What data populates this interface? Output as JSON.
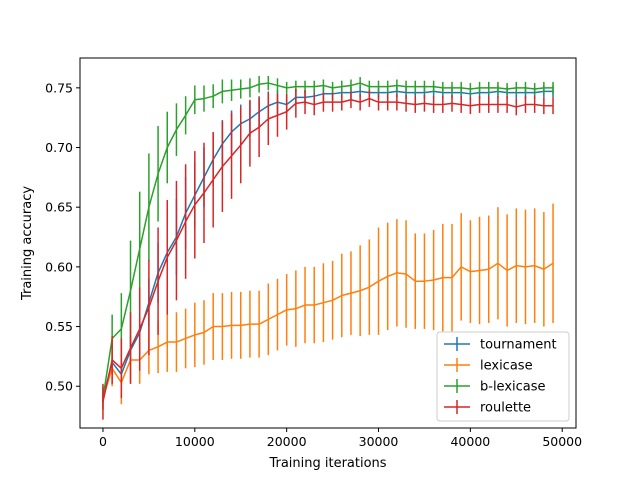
{
  "chart_data": {
    "type": "line",
    "title": "",
    "xlabel": "Training iterations",
    "ylabel": "Training accuracy",
    "xlim": [
      -2500,
      51500
    ],
    "ylim": [
      0.465,
      0.775
    ],
    "xticks": [
      0,
      10000,
      20000,
      30000,
      40000,
      50000
    ],
    "xtick_labels": [
      "0",
      "10000",
      "20000",
      "30000",
      "40000",
      "50000"
    ],
    "yticks": [
      0.5,
      0.55,
      0.6,
      0.65,
      0.7,
      0.75
    ],
    "ytick_labels": [
      "0.50",
      "0.55",
      "0.60",
      "0.65",
      "0.70",
      "0.75"
    ],
    "grid": false,
    "legend_position": "bottom-right",
    "x": [
      0,
      1000,
      2000,
      3000,
      4000,
      5000,
      6000,
      7000,
      8000,
      9000,
      10000,
      11000,
      12000,
      13000,
      14000,
      15000,
      16000,
      17000,
      18000,
      19000,
      20000,
      21000,
      22000,
      23000,
      24000,
      25000,
      26000,
      27000,
      28000,
      29000,
      30000,
      31000,
      32000,
      33000,
      34000,
      35000,
      36000,
      37000,
      38000,
      39000,
      40000,
      41000,
      42000,
      43000,
      44000,
      45000,
      46000,
      47000,
      48000,
      49000
    ],
    "series": [
      {
        "name": "tournament",
        "color": "#1f77b4",
        "values": [
          0.49,
          0.52,
          0.51,
          0.53,
          0.545,
          0.57,
          0.595,
          0.612,
          0.625,
          0.645,
          0.66,
          0.675,
          0.69,
          0.703,
          0.713,
          0.72,
          0.724,
          0.73,
          0.735,
          0.738,
          0.736,
          0.742,
          0.742,
          0.743,
          0.745,
          0.745,
          0.746,
          0.746,
          0.747,
          0.746,
          0.746,
          0.746,
          0.747,
          0.746,
          0.746,
          0.746,
          0.747,
          0.746,
          0.746,
          0.746,
          0.745,
          0.746,
          0.746,
          0.747,
          0.746,
          0.746,
          0.746,
          0.746,
          0.747,
          0.747
        ],
        "errors": [
          0.004,
          0.005,
          0.006,
          0.008,
          0.012,
          0.02,
          0.025,
          0.03,
          0.032,
          0.03,
          0.028,
          0.025,
          0.022,
          0.02,
          0.018,
          0.016,
          0.015,
          0.013,
          0.012,
          0.01,
          0.008,
          0.007,
          0.006,
          0.006,
          0.006,
          0.005,
          0.005,
          0.005,
          0.005,
          0.005,
          0.005,
          0.005,
          0.005,
          0.005,
          0.005,
          0.005,
          0.005,
          0.005,
          0.005,
          0.005,
          0.005,
          0.005,
          0.005,
          0.005,
          0.005,
          0.005,
          0.005,
          0.005,
          0.005,
          0.005
        ]
      },
      {
        "name": "lexicase",
        "color": "#ff7f0e",
        "values": [
          0.49,
          0.515,
          0.503,
          0.522,
          0.522,
          0.53,
          0.533,
          0.537,
          0.537,
          0.54,
          0.543,
          0.545,
          0.55,
          0.55,
          0.551,
          0.551,
          0.552,
          0.552,
          0.556,
          0.56,
          0.564,
          0.565,
          0.568,
          0.568,
          0.57,
          0.572,
          0.576,
          0.578,
          0.58,
          0.583,
          0.588,
          0.592,
          0.595,
          0.594,
          0.588,
          0.588,
          0.589,
          0.591,
          0.591,
          0.6,
          0.596,
          0.597,
          0.598,
          0.603,
          0.597,
          0.601,
          0.6,
          0.601,
          0.598,
          0.603
        ],
        "errors": [
          0.008,
          0.015,
          0.018,
          0.02,
          0.02,
          0.02,
          0.022,
          0.025,
          0.025,
          0.025,
          0.027,
          0.027,
          0.028,
          0.028,
          0.028,
          0.028,
          0.028,
          0.028,
          0.03,
          0.03,
          0.03,
          0.032,
          0.032,
          0.032,
          0.033,
          0.033,
          0.035,
          0.035,
          0.038,
          0.04,
          0.045,
          0.045,
          0.045,
          0.045,
          0.04,
          0.04,
          0.042,
          0.045,
          0.045,
          0.045,
          0.043,
          0.045,
          0.045,
          0.047,
          0.047,
          0.048,
          0.048,
          0.048,
          0.048,
          0.05
        ]
      },
      {
        "name": "b-lexicase",
        "color": "#2ca02c",
        "values": [
          0.49,
          0.54,
          0.548,
          0.58,
          0.615,
          0.65,
          0.678,
          0.7,
          0.715,
          0.727,
          0.74,
          0.741,
          0.743,
          0.747,
          0.748,
          0.749,
          0.75,
          0.753,
          0.754,
          0.752,
          0.75,
          0.751,
          0.751,
          0.751,
          0.752,
          0.75,
          0.751,
          0.752,
          0.754,
          0.751,
          0.751,
          0.751,
          0.752,
          0.751,
          0.751,
          0.751,
          0.751,
          0.75,
          0.75,
          0.75,
          0.749,
          0.75,
          0.75,
          0.75,
          0.749,
          0.75,
          0.75,
          0.749,
          0.75,
          0.75
        ],
        "errors": [
          0.01,
          0.02,
          0.03,
          0.042,
          0.048,
          0.045,
          0.04,
          0.03,
          0.022,
          0.016,
          0.012,
          0.011,
          0.01,
          0.01,
          0.009,
          0.008,
          0.008,
          0.007,
          0.006,
          0.006,
          0.005,
          0.005,
          0.005,
          0.005,
          0.005,
          0.005,
          0.005,
          0.005,
          0.005,
          0.005,
          0.005,
          0.005,
          0.005,
          0.005,
          0.005,
          0.005,
          0.005,
          0.005,
          0.005,
          0.005,
          0.005,
          0.005,
          0.005,
          0.005,
          0.005,
          0.005,
          0.005,
          0.005,
          0.005,
          0.005
        ]
      },
      {
        "name": "roulette",
        "color": "#d62728",
        "values": [
          0.487,
          0.522,
          0.515,
          0.532,
          0.548,
          0.566,
          0.588,
          0.608,
          0.622,
          0.638,
          0.652,
          0.662,
          0.673,
          0.684,
          0.693,
          0.702,
          0.712,
          0.717,
          0.724,
          0.727,
          0.73,
          0.737,
          0.738,
          0.736,
          0.738,
          0.738,
          0.738,
          0.74,
          0.738,
          0.741,
          0.738,
          0.738,
          0.738,
          0.737,
          0.736,
          0.737,
          0.736,
          0.736,
          0.737,
          0.736,
          0.735,
          0.736,
          0.736,
          0.736,
          0.736,
          0.734,
          0.736,
          0.736,
          0.735,
          0.735
        ],
        "errors": [
          0.015,
          0.02,
          0.025,
          0.03,
          0.035,
          0.04,
          0.045,
          0.048,
          0.05,
          0.048,
          0.045,
          0.042,
          0.04,
          0.038,
          0.036,
          0.032,
          0.028,
          0.025,
          0.022,
          0.018,
          0.015,
          0.012,
          0.01,
          0.009,
          0.008,
          0.008,
          0.007,
          0.007,
          0.007,
          0.007,
          0.007,
          0.007,
          0.007,
          0.007,
          0.007,
          0.007,
          0.007,
          0.007,
          0.007,
          0.007,
          0.007,
          0.007,
          0.007,
          0.007,
          0.007,
          0.007,
          0.007,
          0.007,
          0.007,
          0.007
        ]
      }
    ]
  }
}
